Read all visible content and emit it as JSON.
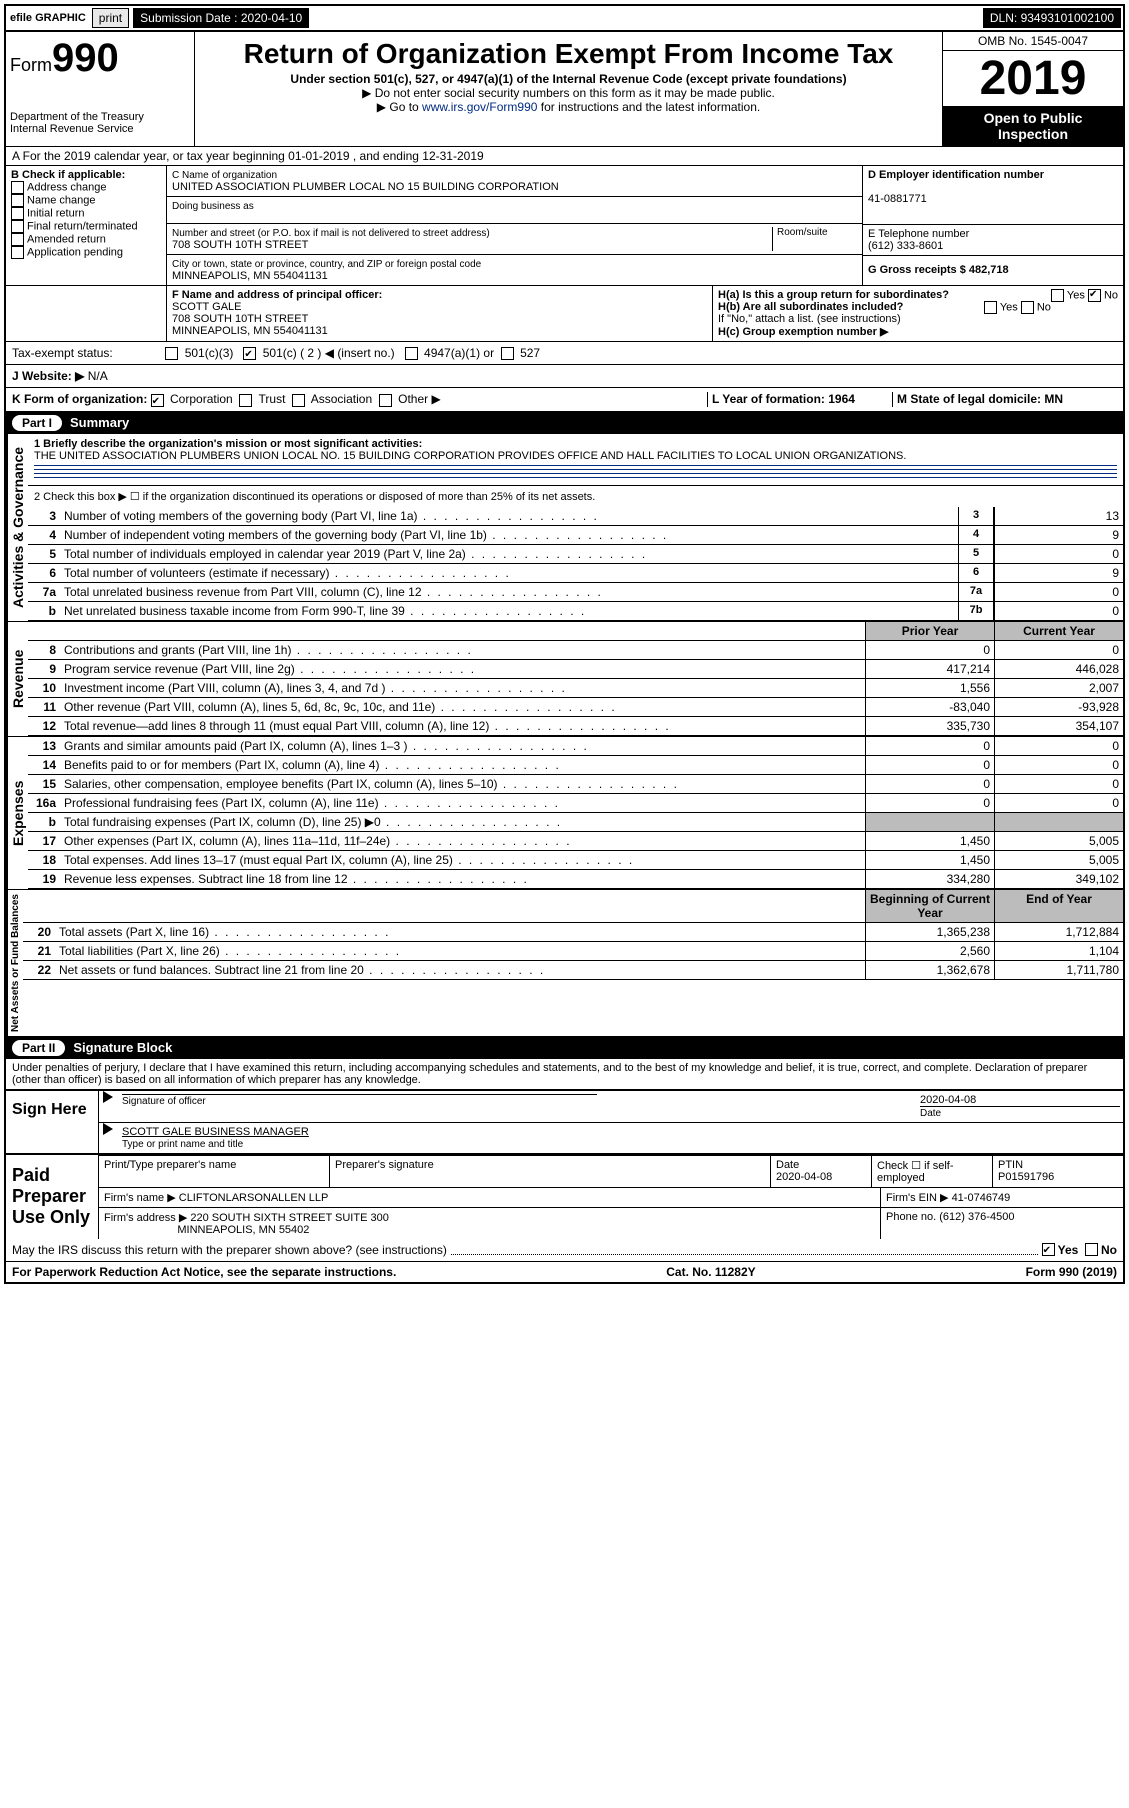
{
  "topbar": {
    "efile": "efile GRAPHIC",
    "print": "print",
    "subdate_lbl": "Submission Date : 2020-04-10",
    "dln_lbl": "DLN: 93493101002100"
  },
  "header": {
    "form": "Form",
    "num": "990",
    "dept": "Department of the Treasury",
    "irs": "Internal Revenue Service",
    "title": "Return of Organization Exempt From Income Tax",
    "sub": "Under section 501(c), 527, or 4947(a)(1) of the Internal Revenue Code (except private foundations)",
    "arrow1": "▶ Do not enter social security numbers on this form as it may be made public.",
    "arrow2_pre": "▶ Go to ",
    "arrow2_link": "www.irs.gov/Form990",
    "arrow2_post": " for instructions and the latest information.",
    "omb": "OMB No. 1545-0047",
    "year": "2019",
    "otp1": "Open to Public",
    "otp2": "Inspection"
  },
  "lineA": {
    "text": "A For the 2019 calendar year, or tax year beginning 01-01-2019    , and ending 12-31-2019"
  },
  "boxB": {
    "hdr": "B Check if applicable:",
    "items": [
      "Address change",
      "Name change",
      "Initial return",
      "Final return/terminated",
      "Amended return",
      "Application pending"
    ]
  },
  "boxC": {
    "name_lbl": "C Name of organization",
    "name": "UNITED ASSOCIATION PLUMBER LOCAL NO 15 BUILDING CORPORATION",
    "dba_lbl": "Doing business as",
    "dba": "",
    "addr_lbl": "Number and street (or P.O. box if mail is not delivered to street address)",
    "room_lbl": "Room/suite",
    "addr": "708 SOUTH 10TH STREET",
    "city_lbl": "City or town, state or province, country, and ZIP or foreign postal code",
    "city": "MINNEAPOLIS, MN  554041131"
  },
  "boxD": {
    "lbl": "D Employer identification number",
    "val": "41-0881771"
  },
  "boxE": {
    "lbl": "E Telephone number",
    "val": "(612) 333-8601"
  },
  "boxG": {
    "lbl": "G Gross receipts $ 482,718"
  },
  "boxF": {
    "lbl": "F  Name and address of principal officer:",
    "name": "SCOTT GALE",
    "addr": "708 SOUTH 10TH STREET",
    "city": "MINNEAPOLIS, MN  554041131"
  },
  "boxH": {
    "a": "H(a)  Is this a group return for subordinates?",
    "ayes": "Yes",
    "ano": "No",
    "b": "H(b)  Are all subordinates included?",
    "byes": "Yes",
    "bno": "No",
    "bnote": "If \"No,\" attach a list. (see instructions)",
    "c": "H(c)  Group exemption number ▶"
  },
  "taxstatus": {
    "lbl": "Tax-exempt status:",
    "c3": "501(c)(3)",
    "c": "501(c) ( 2 ) ◀ (insert no.)",
    "a1": "4947(a)(1) or",
    "s527": "527"
  },
  "lineJ": {
    "lbl": "J   Website: ▶",
    "val": "N/A"
  },
  "lineK": {
    "lbl": "K Form of organization:",
    "corp": "Corporation",
    "trust": "Trust",
    "assoc": "Association",
    "other": "Other ▶"
  },
  "lineL": {
    "lbl": "L Year of formation: 1964"
  },
  "lineM": {
    "lbl": "M State of legal domicile: MN"
  },
  "part1": {
    "hdr": "Part I",
    "title": "Summary"
  },
  "summary": {
    "l1_lbl": "1  Briefly describe the organization's mission or most significant activities:",
    "l1_text": "THE UNITED ASSOCIATION PLUMBERS UNION LOCAL NO. 15 BUILDING CORPORATION PROVIDES OFFICE AND HALL FACILITIES TO LOCAL UNION ORGANIZATIONS.",
    "l2": "2   Check this box ▶ ☐  if the organization discontinued its operations or disposed of more than 25% of its net assets.",
    "rows_ag": [
      {
        "n": "3",
        "d": "Number of voting members of the governing body (Part VI, line 1a)",
        "box": "3",
        "v": "13"
      },
      {
        "n": "4",
        "d": "Number of independent voting members of the governing body (Part VI, line 1b)",
        "box": "4",
        "v": "9"
      },
      {
        "n": "5",
        "d": "Total number of individuals employed in calendar year 2019 (Part V, line 2a)",
        "box": "5",
        "v": "0"
      },
      {
        "n": "6",
        "d": "Total number of volunteers (estimate if necessary)",
        "box": "6",
        "v": "9"
      },
      {
        "n": "7a",
        "d": "Total unrelated business revenue from Part VIII, column (C), line 12",
        "box": "7a",
        "v": "0"
      },
      {
        "n": "b",
        "d": "Net unrelated business taxable income from Form 990-T, line 39",
        "box": "7b",
        "v": "0"
      }
    ],
    "hdr_prior": "Prior Year",
    "hdr_curr": "Current Year",
    "rev": [
      {
        "n": "8",
        "d": "Contributions and grants (Part VIII, line 1h)",
        "p": "0",
        "c": "0"
      },
      {
        "n": "9",
        "d": "Program service revenue (Part VIII, line 2g)",
        "p": "417,214",
        "c": "446,028"
      },
      {
        "n": "10",
        "d": "Investment income (Part VIII, column (A), lines 3, 4, and 7d )",
        "p": "1,556",
        "c": "2,007"
      },
      {
        "n": "11",
        "d": "Other revenue (Part VIII, column (A), lines 5, 6d, 8c, 9c, 10c, and 11e)",
        "p": "-83,040",
        "c": "-93,928"
      },
      {
        "n": "12",
        "d": "Total revenue—add lines 8 through 11 (must equal Part VIII, column (A), line 12)",
        "p": "335,730",
        "c": "354,107"
      }
    ],
    "exp": [
      {
        "n": "13",
        "d": "Grants and similar amounts paid (Part IX, column (A), lines 1–3 )",
        "p": "0",
        "c": "0"
      },
      {
        "n": "14",
        "d": "Benefits paid to or for members (Part IX, column (A), line 4)",
        "p": "0",
        "c": "0"
      },
      {
        "n": "15",
        "d": "Salaries, other compensation, employee benefits (Part IX, column (A), lines 5–10)",
        "p": "0",
        "c": "0"
      },
      {
        "n": "16a",
        "d": "Professional fundraising fees (Part IX, column (A), line 11e)",
        "p": "0",
        "c": "0"
      },
      {
        "n": "b",
        "d": "Total fundraising expenses (Part IX, column (D), line 25) ▶0",
        "p": "",
        "c": "",
        "gray": true
      },
      {
        "n": "17",
        "d": "Other expenses (Part IX, column (A), lines 11a–11d, 11f–24e)",
        "p": "1,450",
        "c": "5,005"
      },
      {
        "n": "18",
        "d": "Total expenses. Add lines 13–17 (must equal Part IX, column (A), line 25)",
        "p": "1,450",
        "c": "5,005"
      },
      {
        "n": "19",
        "d": "Revenue less expenses. Subtract line 18 from line 12",
        "p": "334,280",
        "c": "349,102"
      }
    ],
    "hdr_beg": "Beginning of Current Year",
    "hdr_end": "End of Year",
    "net": [
      {
        "n": "20",
        "d": "Total assets (Part X, line 16)",
        "p": "1,365,238",
        "c": "1,712,884"
      },
      {
        "n": "21",
        "d": "Total liabilities (Part X, line 26)",
        "p": "2,560",
        "c": "1,104"
      },
      {
        "n": "22",
        "d": "Net assets or fund balances. Subtract line 21 from line 20",
        "p": "1,362,678",
        "c": "1,711,780"
      }
    ],
    "vlabels": {
      "ag": "Activities & Governance",
      "rev": "Revenue",
      "exp": "Expenses",
      "net": "Net Assets or Fund Balances"
    }
  },
  "part2": {
    "hdr": "Part II",
    "title": "Signature Block",
    "decl": "Under penalties of perjury, I declare that I have examined this return, including accompanying schedules and statements, and to the best of my knowledge and belief, it is true, correct, and complete. Declaration of preparer (other than officer) is based on all information of which preparer has any knowledge."
  },
  "sign": {
    "here": "Sign Here",
    "sig_lbl": "Signature of officer",
    "date_lbl": "Date",
    "date": "2020-04-08",
    "name": "SCOTT GALE  BUSINESS MANAGER",
    "name_lbl": "Type or print name and title"
  },
  "paid": {
    "lbl": "Paid Preparer Use Only",
    "h1": "Print/Type preparer's name",
    "h2": "Preparer's signature",
    "h3": "Date",
    "h3v": "2020-04-08",
    "h4": "Check ☐ if self-employed",
    "h5": "PTIN",
    "h5v": "P01591796",
    "firm_lbl": "Firm's name    ▶",
    "firm": "CLIFTONLARSONALLEN LLP",
    "ein_lbl": "Firm's EIN ▶",
    "ein": "41-0746749",
    "addr_lbl": "Firm's address ▶",
    "addr": "220 SOUTH SIXTH STREET SUITE 300",
    "addr2": "MINNEAPOLIS, MN  55402",
    "phone_lbl": "Phone no. (612) 376-4500",
    "discuss": "May the IRS discuss this return with the preparer shown above? (see instructions)",
    "yes": "Yes",
    "no": "No"
  },
  "footer": {
    "l": "For Paperwork Reduction Act Notice, see the separate instructions.",
    "c": "Cat. No. 11282Y",
    "r": "Form 990 (2019)"
  }
}
